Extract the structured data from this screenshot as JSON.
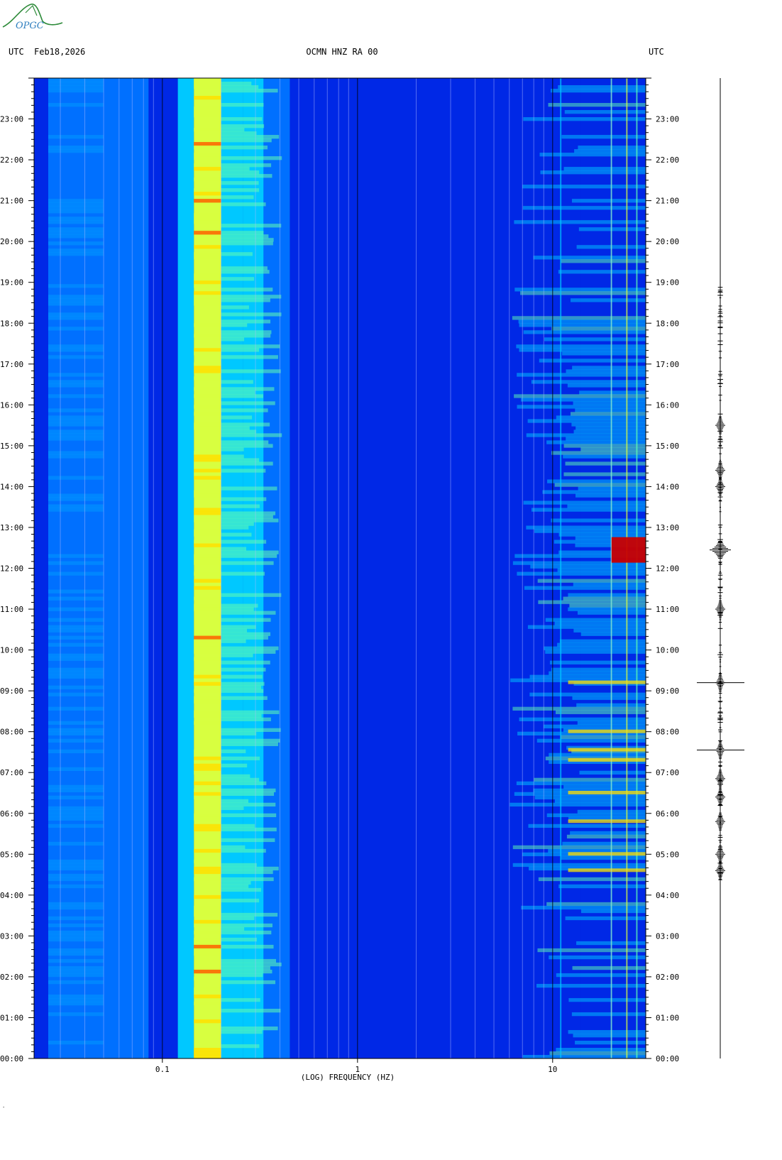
{
  "header": {
    "left_tz": "UTC",
    "date": "Feb18,2026",
    "station": "OCMN HNZ RA 00",
    "right_tz": "UTC"
  },
  "logo": {
    "text": "OPGC",
    "icon": "opgc-logo-icon",
    "color": "#2e8b3a"
  },
  "chart_data": {
    "type": "heatmap",
    "title": "OCMN HNZ RA 00",
    "xlabel": "(LOG) FREQUENCY (HZ)",
    "ylabel": "",
    "x_scale": "log",
    "xlim": [
      0.022,
      30
    ],
    "x_ticks": [
      {
        "value": 0.1,
        "label": "0.1"
      },
      {
        "value": 1,
        "label": "1"
      },
      {
        "value": 10,
        "label": "10"
      }
    ],
    "ylim": [
      0,
      24
    ],
    "y_ticks": [
      {
        "value": 0,
        "label": "00:00"
      },
      {
        "value": 1,
        "label": "01:00"
      },
      {
        "value": 2,
        "label": "02:00"
      },
      {
        "value": 3,
        "label": "03:00"
      },
      {
        "value": 4,
        "label": "04:00"
      },
      {
        "value": 5,
        "label": "05:00"
      },
      {
        "value": 6,
        "label": "06:00"
      },
      {
        "value": 7,
        "label": "07:00"
      },
      {
        "value": 8,
        "label": "08:00"
      },
      {
        "value": 9,
        "label": "09:00"
      },
      {
        "value": 10,
        "label": "10:00"
      },
      {
        "value": 11,
        "label": "11:00"
      },
      {
        "value": 12,
        "label": "12:00"
      },
      {
        "value": 13,
        "label": "13:00"
      },
      {
        "value": 14,
        "label": "14:00"
      },
      {
        "value": 15,
        "label": "15:00"
      },
      {
        "value": 16,
        "label": "16:00"
      },
      {
        "value": 17,
        "label": "17:00"
      },
      {
        "value": 18,
        "label": "18:00"
      },
      {
        "value": 19,
        "label": "19:00"
      },
      {
        "value": 20,
        "label": "20:00"
      },
      {
        "value": 21,
        "label": "21:00"
      },
      {
        "value": 22,
        "label": "22:00"
      },
      {
        "value": 23,
        "label": "23:00"
      }
    ],
    "colormap": [
      "#00008c",
      "#0028e6",
      "#0070ff",
      "#00c8ff",
      "#60ffb0",
      "#d8ff40",
      "#ffe000",
      "#ff6000",
      "#c80000"
    ],
    "microseism_peak_hz": 0.17,
    "events_utc_hours": [
      4.6,
      5.0,
      5.8,
      6.5,
      7.3,
      7.55,
      8.0,
      9.2,
      12.45
    ]
  },
  "trace": {
    "events_utc_hours": [
      4.6,
      5.0,
      5.8,
      6.4,
      6.85,
      7.55,
      9.2,
      11.0,
      12.45,
      14.0,
      14.4,
      15.5
    ],
    "large_events_utc_hours": [
      7.55,
      9.2
    ],
    "color": "#000000"
  }
}
